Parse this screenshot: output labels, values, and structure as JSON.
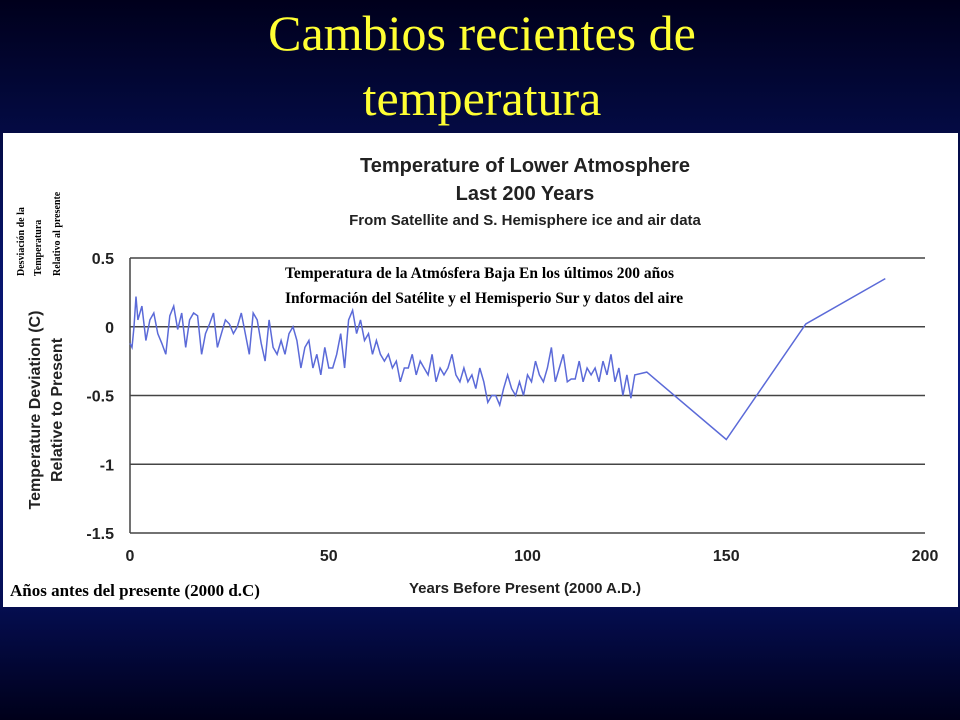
{
  "slide_title": [
    "Cambios recientes  de",
    "temperatura"
  ],
  "chart_data": {
    "type": "line",
    "title": [
      "Temperature of Lower Atmosphere",
      "Last 200 Years"
    ],
    "subtitle": "From Satellite and S. Hemisphere ice and air data",
    "ylabel": [
      "Temperature Deviation (C)",
      "Relative to Present"
    ],
    "xlabel": "Years Before Present (2000 A.D.)",
    "annotations": {
      "ylabel_es": [
        "Desviación de la",
        "Temperatura",
        "Relativo al presente"
      ],
      "title_es": [
        "Temperatura  de la Atmósfera  Baja En los últimos 200 años",
        "Información del Satélite y el Hemisperio  Sur y datos del aire"
      ],
      "xlabel_es": "Años antes del presente (2000 d.C)"
    },
    "color": "#5b6ad8",
    "xlim": [
      0,
      200
    ],
    "xticks": [
      0,
      50,
      100,
      150,
      200
    ],
    "ylim": [
      -1.5,
      0.5
    ],
    "yticks": [
      0.5,
      0,
      -0.5,
      -1,
      -1.5
    ],
    "grid": true,
    "x": [
      0,
      0.5,
      1,
      1.5,
      2,
      3,
      4,
      5,
      6,
      7,
      8,
      9,
      10,
      11,
      12,
      13,
      14,
      15,
      16,
      17,
      18,
      19,
      20,
      21,
      22,
      23,
      24,
      25,
      26,
      27,
      28,
      29,
      30,
      31,
      32,
      33,
      34,
      35,
      36,
      37,
      38,
      39,
      40,
      41,
      42,
      43,
      44,
      45,
      46,
      47,
      48,
      49,
      50,
      51,
      52,
      53,
      54,
      55,
      56,
      57,
      58,
      59,
      60,
      61,
      62,
      63,
      64,
      65,
      66,
      67,
      68,
      69,
      70,
      71,
      72,
      73,
      74,
      75,
      76,
      77,
      78,
      79,
      80,
      81,
      82,
      83,
      84,
      85,
      86,
      87,
      88,
      89,
      90,
      91,
      92,
      93,
      94,
      95,
      96,
      97,
      98,
      99,
      100,
      101,
      102,
      103,
      104,
      105,
      106,
      107,
      108,
      109,
      110,
      111,
      112,
      113,
      114,
      115,
      116,
      117,
      118,
      119,
      120,
      121,
      122,
      123,
      124,
      125,
      126,
      127,
      130,
      150,
      170,
      190
    ],
    "values": [
      -0.12,
      -0.15,
      0.0,
      0.22,
      0.05,
      0.15,
      -0.1,
      0.05,
      0.1,
      -0.05,
      -0.12,
      -0.2,
      0.08,
      0.15,
      -0.02,
      0.1,
      -0.15,
      0.05,
      0.1,
      0.08,
      -0.2,
      -0.05,
      0.02,
      0.1,
      -0.15,
      -0.05,
      0.05,
      0.02,
      -0.05,
      0.0,
      0.1,
      -0.05,
      -0.2,
      0.1,
      0.05,
      -0.12,
      -0.25,
      0.05,
      -0.15,
      -0.2,
      -0.1,
      -0.2,
      -0.05,
      0.0,
      -0.1,
      -0.3,
      -0.15,
      -0.1,
      -0.3,
      -0.2,
      -0.35,
      -0.15,
      -0.3,
      -0.3,
      -0.2,
      -0.05,
      -0.3,
      0.05,
      0.12,
      -0.05,
      0.05,
      -0.1,
      -0.05,
      -0.2,
      -0.1,
      -0.2,
      -0.25,
      -0.2,
      -0.3,
      -0.25,
      -0.4,
      -0.3,
      -0.3,
      -0.2,
      -0.35,
      -0.25,
      -0.3,
      -0.35,
      -0.2,
      -0.4,
      -0.3,
      -0.35,
      -0.3,
      -0.2,
      -0.35,
      -0.4,
      -0.3,
      -0.4,
      -0.35,
      -0.45,
      -0.3,
      -0.4,
      -0.55,
      -0.5,
      -0.5,
      -0.57,
      -0.45,
      -0.35,
      -0.45,
      -0.5,
      -0.4,
      -0.5,
      -0.35,
      -0.4,
      -0.25,
      -0.35,
      -0.4,
      -0.3,
      -0.15,
      -0.4,
      -0.3,
      -0.2,
      -0.4,
      -0.38,
      -0.38,
      -0.25,
      -0.4,
      -0.3,
      -0.35,
      -0.3,
      -0.4,
      -0.25,
      -0.35,
      -0.2,
      -0.4,
      -0.3,
      -0.5,
      -0.35,
      -0.52,
      -0.35,
      -0.33,
      -0.82,
      0.02,
      0.35
    ]
  }
}
